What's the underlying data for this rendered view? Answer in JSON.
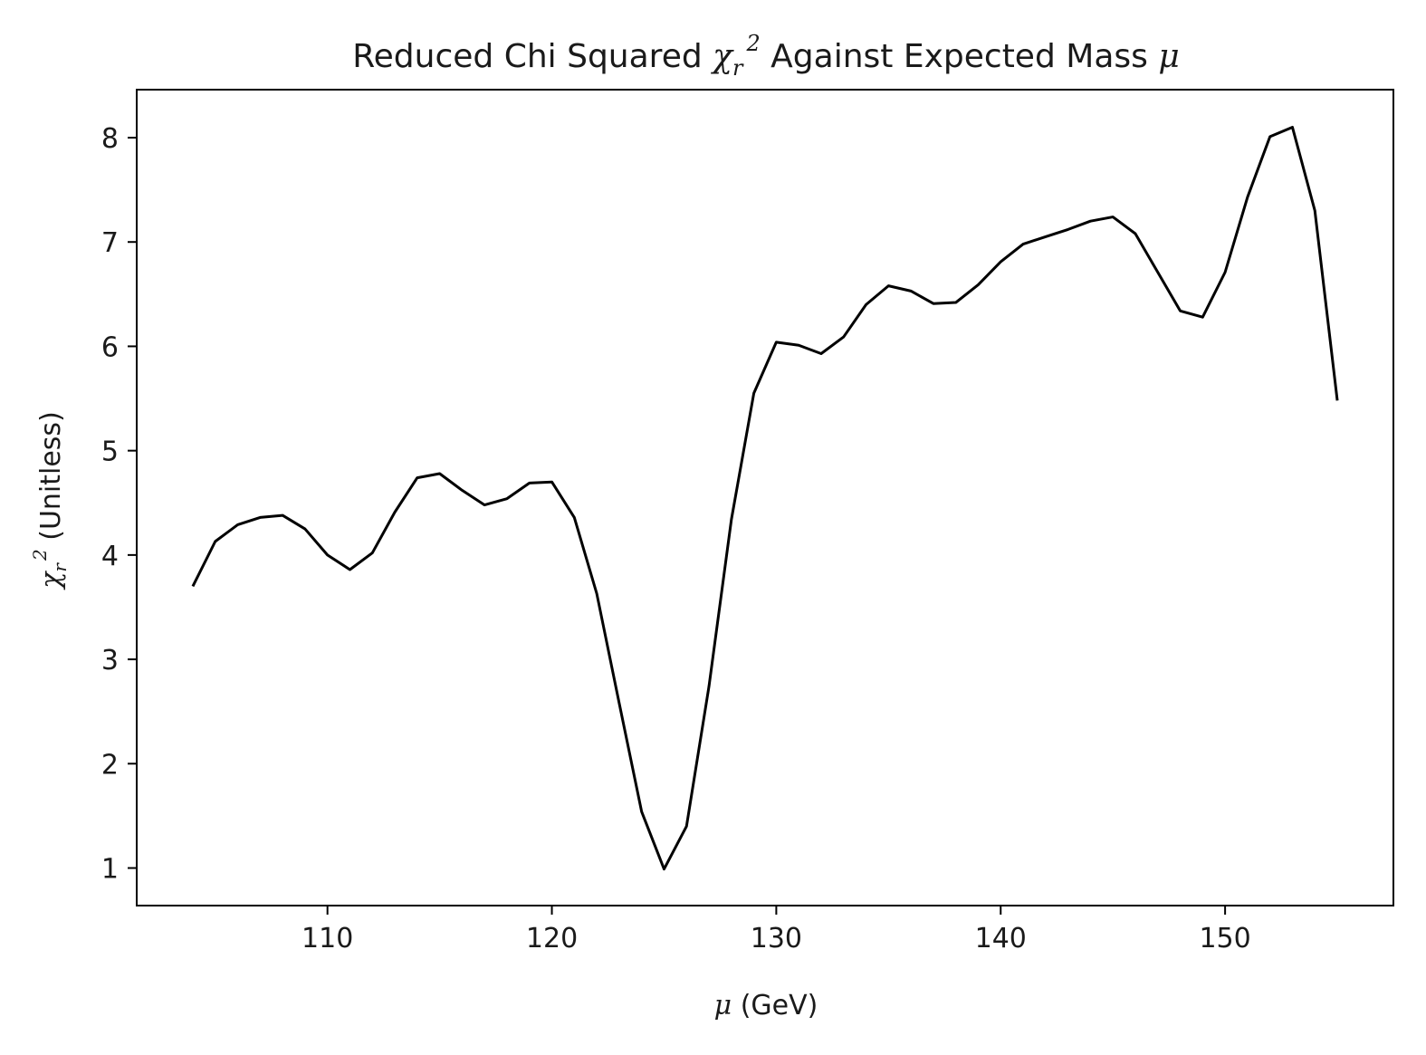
{
  "chart_data": {
    "type": "line",
    "title": {
      "prefix": "Reduced Chi Squared ",
      "chi": "χ",
      "sub": "r",
      "sup": "2",
      "middle": " Against Expected Mass ",
      "mu": "μ"
    },
    "xlabel": {
      "mu": "μ",
      "text": " (GeV)"
    },
    "ylabel": {
      "chi": "χ",
      "sub": "r",
      "sup": "2",
      "text": " (Unitless)"
    },
    "xlim": [
      101.5,
      157.5
    ],
    "ylim": [
      0.64,
      8.46
    ],
    "xticks": [
      110,
      120,
      130,
      140,
      150
    ],
    "yticks": [
      1,
      2,
      3,
      4,
      5,
      6,
      7,
      8
    ],
    "grid": false,
    "line_color": "#000000",
    "series": [
      {
        "x": [
          104,
          105,
          106,
          107,
          108,
          109,
          110,
          111,
          112,
          113,
          114,
          115,
          116,
          117,
          118,
          119,
          120,
          121,
          122,
          123,
          124,
          125,
          126,
          127,
          128,
          129,
          130,
          131,
          132,
          133,
          134,
          135,
          136,
          137,
          138,
          139,
          140,
          141,
          142,
          143,
          144,
          145,
          146,
          147,
          148,
          149,
          150,
          151,
          152,
          153,
          154,
          155
        ],
        "y": [
          3.7,
          4.13,
          4.29,
          4.36,
          4.38,
          4.25,
          4.0,
          3.86,
          4.02,
          4.41,
          4.74,
          4.78,
          4.62,
          4.48,
          4.54,
          4.69,
          4.7,
          4.36,
          3.63,
          2.58,
          1.54,
          0.99,
          1.4,
          2.74,
          4.34,
          5.55,
          6.04,
          6.01,
          5.93,
          6.09,
          6.4,
          6.58,
          6.53,
          6.41,
          6.42,
          6.59,
          6.81,
          6.98,
          7.05,
          7.12,
          7.2,
          7.24,
          7.08,
          6.71,
          6.34,
          6.28,
          6.71,
          7.43,
          8.01,
          8.1,
          7.3,
          5.48
        ]
      }
    ]
  }
}
